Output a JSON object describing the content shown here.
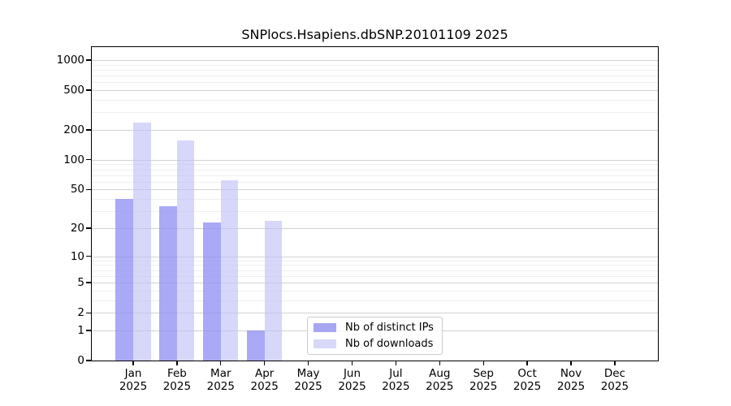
{
  "title": "SNPlocs.Hsapiens.dbSNP.20101109 2025",
  "chart_data": {
    "type": "bar",
    "title": "SNPlocs.Hsapiens.dbSNP.20101109 2025",
    "categories": [
      "Jan",
      "Feb",
      "Mar",
      "Apr",
      "May",
      "Jun",
      "Jul",
      "Aug",
      "Sep",
      "Oct",
      "Nov",
      "Dec"
    ],
    "year_label": "2025",
    "series": [
      {
        "name": "Nb of distinct IPs",
        "color": "rgba(140,140,243,0.75)",
        "legend_color": "#a6a6f2",
        "values": [
          40,
          34,
          23,
          1,
          0,
          0,
          0,
          0,
          0,
          0,
          0,
          0
        ]
      },
      {
        "name": "Nb of downloads",
        "color": "rgba(190,190,247,0.62)",
        "legend_color": "#d8d8f8",
        "values": [
          235,
          158,
          62,
          24,
          0,
          0,
          0,
          0,
          0,
          0,
          0,
          0
        ]
      }
    ],
    "xlabel": "",
    "ylabel": "",
    "y_scale": "log10(1+x)",
    "y_ticks": [
      0,
      1,
      2,
      5,
      10,
      20,
      50,
      100,
      200,
      500,
      1000
    ],
    "y_minor_gridlines": [
      3,
      4,
      6,
      7,
      8,
      9,
      30,
      40,
      60,
      70,
      80,
      90,
      300,
      400,
      600,
      700,
      800,
      900
    ],
    "ylim": [
      0,
      1350
    ],
    "grid": true,
    "legend_position": "lower center"
  },
  "legend": {
    "items": [
      "Nb of distinct IPs",
      "Nb of downloads"
    ]
  }
}
